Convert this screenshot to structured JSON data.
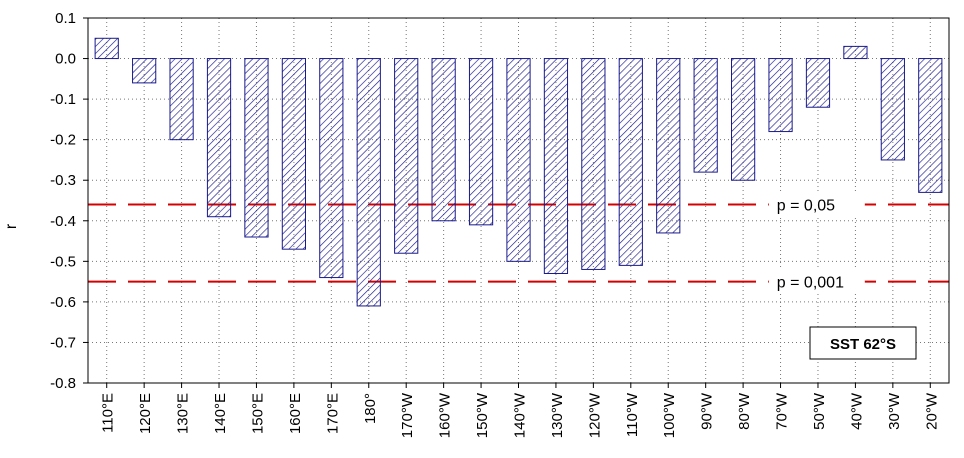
{
  "chart_data": {
    "type": "bar",
    "ylabel": "r",
    "xlabel": "",
    "ylim": [
      -0.8,
      0.1
    ],
    "yticks": [
      "0.1",
      "0.0",
      "-0.1",
      "-0.2",
      "-0.3",
      "-0.4",
      "-0.5",
      "-0.6",
      "-0.7",
      "-0.8"
    ],
    "ytick_values": [
      0.1,
      0.0,
      -0.1,
      -0.2,
      -0.3,
      -0.4,
      -0.5,
      -0.6,
      -0.7,
      -0.8
    ],
    "grid": true,
    "categories": [
      "110°E",
      "120°E",
      "130°E",
      "140°E",
      "150°E",
      "160°E",
      "170°E",
      "180°",
      "170°W",
      "160°W",
      "150°W",
      "140°W",
      "130°W",
      "120°W",
      "110°W",
      "100°W",
      "90°W",
      "80°W",
      "70°W",
      "50°W",
      "40°W",
      "30°W",
      "20°W"
    ],
    "values": [
      0.05,
      -0.06,
      -0.2,
      -0.39,
      -0.44,
      -0.47,
      -0.54,
      -0.61,
      -0.48,
      -0.4,
      -0.41,
      -0.5,
      -0.53,
      -0.52,
      -0.51,
      -0.43,
      -0.28,
      -0.3,
      -0.18,
      -0.12,
      0.03,
      -0.25,
      -0.33
    ],
    "reference_lines": [
      {
        "label": "p = 0,05",
        "value": -0.36
      },
      {
        "label": "p = 0,001",
        "value": -0.55
      }
    ],
    "annotation": "SST 62°S",
    "colors": {
      "bar_stroke": "#1a1a8c",
      "bar_hatch": "#1a1a8c",
      "reference_line": "#d40000",
      "grid": "#777777"
    }
  }
}
